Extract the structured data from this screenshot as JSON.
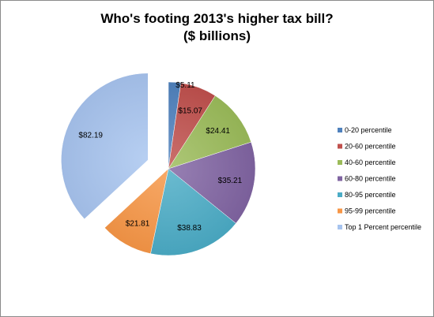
{
  "chart_data": {
    "type": "pie",
    "title_line1": "Who's footing 2013's higher tax bill?",
    "title_line2": "($ billions)",
    "legend_position": "right",
    "exploded_slice": "Top 1 Percent percentile",
    "slices": [
      {
        "name": "0-20 percentile",
        "value": 5.11,
        "label": "$5.11",
        "color": "#4f81bd"
      },
      {
        "name": "20-60 percentile",
        "value": 15.07,
        "label": "$15.07",
        "color": "#c0504d"
      },
      {
        "name": "40-60 percentile",
        "value": 24.41,
        "label": "$24.41",
        "color": "#9bbb59"
      },
      {
        "name": "60-80 percentile",
        "value": 35.21,
        "label": "$35.21",
        "color": "#8064a2"
      },
      {
        "name": "80-95 percentile",
        "value": 38.83,
        "label": "$38.83",
        "color": "#4bacc6"
      },
      {
        "name": "95-99 percentile",
        "value": 21.81,
        "label": "$21.81",
        "color": "#f79646"
      },
      {
        "name": "Top 1 Percent percentile",
        "value": 82.19,
        "label": "$82.19",
        "color": "#a7c4ef"
      }
    ]
  }
}
